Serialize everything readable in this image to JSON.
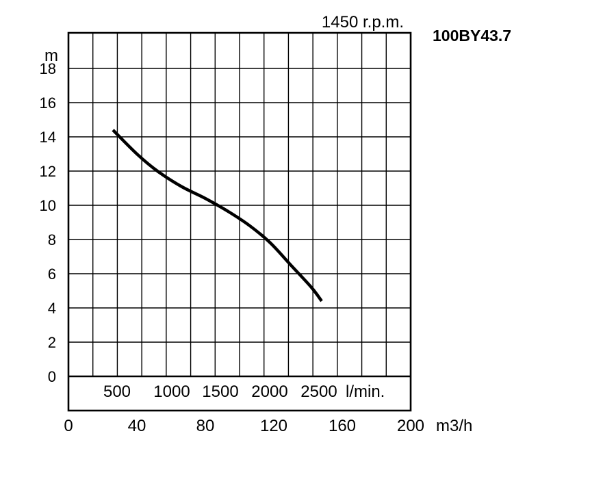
{
  "chart_data": {
    "type": "line",
    "title": "100BY43.7",
    "subtitle": "1450 r.p.m.",
    "ylabel": "m",
    "xlabel": "m3/h",
    "secondary_x_label": "l/min.",
    "xlim": [
      0,
      200
    ],
    "ylim": [
      0,
      18
    ],
    "x_ticks": [
      "0",
      "40",
      "80",
      "120",
      "160",
      "200"
    ],
    "y_ticks": [
      "0",
      "2",
      "4",
      "6",
      "8",
      "10",
      "12",
      "14",
      "16",
      "18"
    ],
    "secondary_x_ticks": [
      "500",
      "1000",
      "1500",
      "2000",
      "2500"
    ],
    "grid": true,
    "series": [
      {
        "x": [
          26,
          40,
          52,
          66,
          80,
          94,
          106,
          118,
          130,
          142,
          148
        ],
        "y": [
          14.4,
          13.0,
          12.0,
          11.1,
          10.4,
          9.6,
          8.8,
          7.8,
          6.5,
          5.2,
          4.4
        ]
      }
    ]
  }
}
